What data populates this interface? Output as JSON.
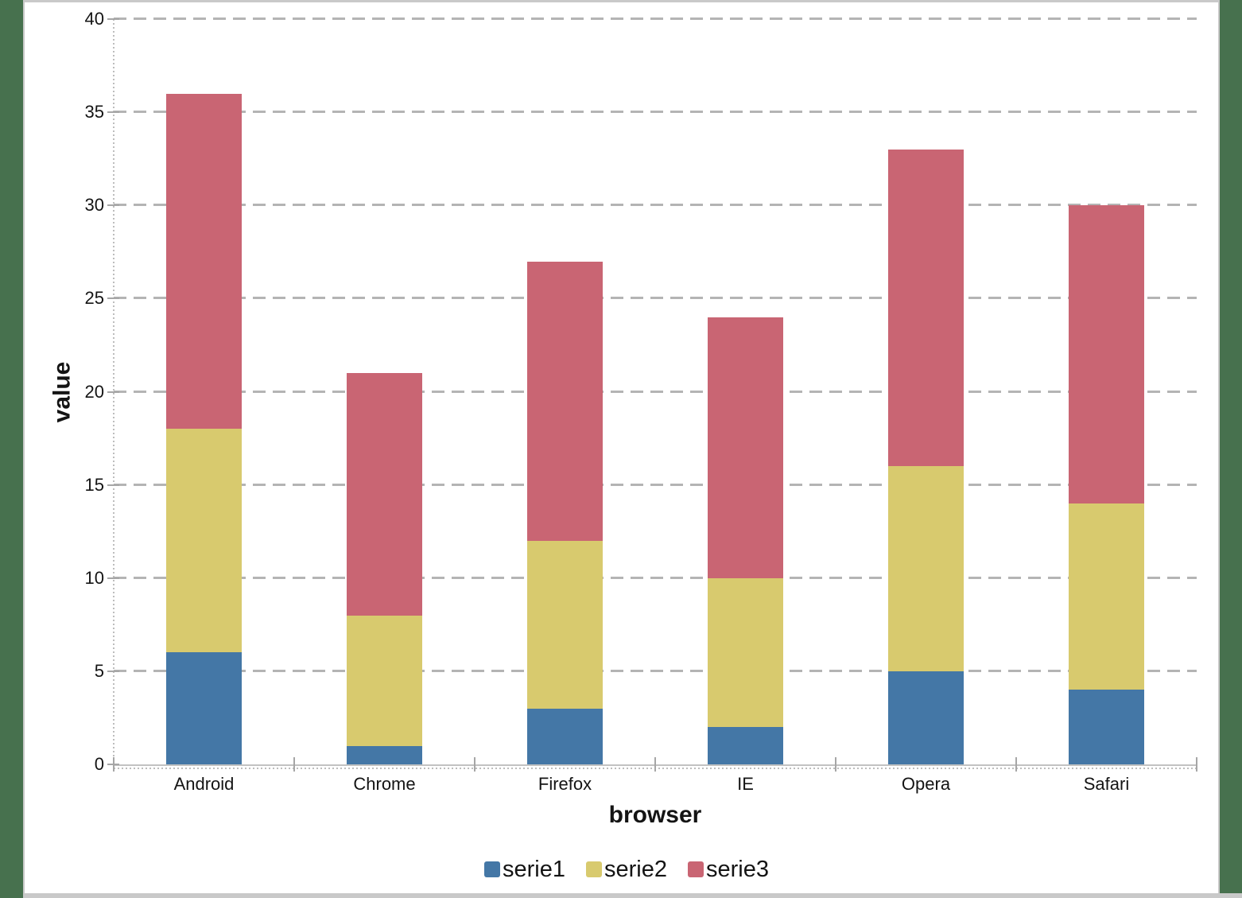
{
  "theme": {
    "frame_color": "#47714e",
    "panel_bg": "#ffffff",
    "border_gray": "#c9c9c9",
    "gridline_color": "#b4b4b4",
    "axis_line_color": "#bdbdbd",
    "tick_color": "#a6a6a6",
    "text_color": "#141414"
  },
  "chart_data": {
    "type": "bar",
    "stacked": true,
    "title": "",
    "xlabel": "browser",
    "ylabel": "value",
    "categories": [
      "Android",
      "Chrome",
      "Firefox",
      "IE",
      "Opera",
      "Safari"
    ],
    "series": [
      {
        "name": "serie1",
        "color": "#4477a6",
        "values": [
          6,
          1,
          3,
          2,
          5,
          4
        ]
      },
      {
        "name": "serie2",
        "color": "#d8ca6e",
        "values": [
          12,
          7,
          9,
          8,
          11,
          10
        ]
      },
      {
        "name": "serie3",
        "color": "#c96573",
        "values": [
          18,
          13,
          15,
          14,
          17,
          16
        ]
      }
    ],
    "stack_totals": [
      36,
      21,
      27,
      24,
      33,
      30
    ],
    "ylim": [
      0,
      40
    ],
    "yticks": [
      0,
      5,
      10,
      15,
      20,
      25,
      30,
      35,
      40
    ],
    "grid": "horizontal-dashed",
    "legend_position": "bottom",
    "legend_labels": [
      "serie1",
      "serie2",
      "serie3"
    ]
  }
}
